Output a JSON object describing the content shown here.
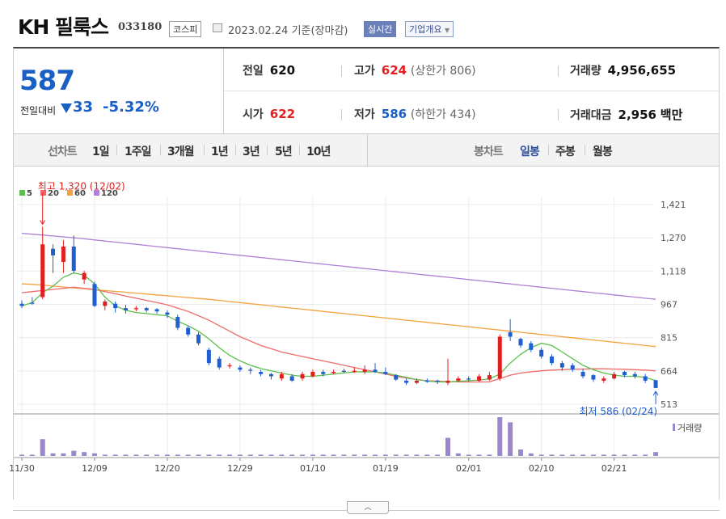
{
  "header": {
    "name": "KH 필룩스",
    "code": "033180",
    "market": "코스피",
    "date": "2023.02.24 기준(장마감)",
    "realtime": "실시간",
    "corp_info": "기업개요"
  },
  "quote": {
    "price": "587",
    "change_label": "전일대비",
    "change": "33",
    "change_pct": "-5.32%",
    "prev_label": "전일",
    "prev": "620",
    "high_label": "고가",
    "high": "624",
    "upper_limit": "(상한가 806)",
    "volume_label": "거래량",
    "volume": "4,956,655",
    "open_label": "시가",
    "open": "622",
    "low_label": "저가",
    "low": "586",
    "lower_limit": "(하한가 434)",
    "amount_label": "거래대금",
    "amount": "2,956",
    "amount_unit": "백만"
  },
  "tabs": {
    "line_label": "선차트",
    "line": [
      "1일",
      "1주일",
      "3개월",
      "1년",
      "3년",
      "5년",
      "10년"
    ],
    "candle_label": "봉차트",
    "candle": [
      "일봉",
      "주봉",
      "월봉"
    ],
    "active_candle": "일봉"
  },
  "colors": {
    "up": "#e02020",
    "down": "#1f5fd1",
    "ma5": "#5cbf4d",
    "ma20": "#f06a6a",
    "ma60": "#f5a23c",
    "ma120": "#b07fd6",
    "volume": "#9b88c9"
  },
  "chart_data": {
    "type": "candlestick",
    "legend": [
      {
        "name": "5",
        "color": "#5cbf4d"
      },
      {
        "name": "20",
        "color": "#f06a6a"
      },
      {
        "name": "60",
        "color": "#f5a23c"
      },
      {
        "name": "120",
        "color": "#b07fd6"
      }
    ],
    "volume_label": "거래량",
    "y_ticks": [
      "1,421",
      "1,270",
      "1,118",
      "967",
      "815",
      "664",
      "513"
    ],
    "ylim": [
      513,
      1421
    ],
    "x_ticks": [
      {
        "label": "11/30",
        "index": 0
      },
      {
        "label": "12/09",
        "index": 7
      },
      {
        "label": "12/20",
        "index": 14
      },
      {
        "label": "12/29",
        "index": 21
      },
      {
        "label": "01/10",
        "index": 28
      },
      {
        "label": "01/19",
        "index": 35
      },
      {
        "label": "02/01",
        "index": 43
      },
      {
        "label": "02/10",
        "index": 50
      },
      {
        "label": "02/21",
        "index": 57
      }
    ],
    "annotations": [
      {
        "text": "최고 1,320 (12/02)",
        "index": 2,
        "value": 1320,
        "side": "above"
      },
      {
        "text": "최저 586 (02/24)",
        "index": 61,
        "value": 586,
        "side": "below"
      }
    ],
    "candles": [
      [
        970,
        960,
        985,
        950
      ],
      [
        975,
        970,
        1000,
        965
      ],
      [
        1000,
        1240,
        1320,
        990
      ],
      [
        1220,
        1190,
        1240,
        1110
      ],
      [
        1160,
        1230,
        1260,
        1110
      ],
      [
        1230,
        1120,
        1280,
        1110
      ],
      [
        1080,
        1110,
        1120,
        1060
      ],
      [
        1060,
        960,
        1070,
        955
      ],
      [
        960,
        980,
        990,
        940
      ],
      [
        970,
        950,
        980,
        930
      ],
      [
        950,
        940,
        965,
        925
      ],
      [
        945,
        950,
        960,
        935
      ],
      [
        950,
        940,
        955,
        930
      ],
      [
        945,
        935,
        950,
        925
      ],
      [
        930,
        920,
        940,
        905
      ],
      [
        910,
        860,
        920,
        850
      ],
      [
        860,
        830,
        870,
        820
      ],
      [
        830,
        790,
        840,
        780
      ],
      [
        760,
        700,
        770,
        690
      ],
      [
        720,
        680,
        730,
        670
      ],
      [
        685,
        690,
        700,
        675
      ],
      [
        680,
        670,
        690,
        660
      ],
      [
        670,
        665,
        680,
        650
      ],
      [
        660,
        650,
        670,
        640
      ],
      [
        650,
        640,
        655,
        625
      ],
      [
        630,
        650,
        660,
        620
      ],
      [
        640,
        620,
        650,
        615
      ],
      [
        630,
        650,
        660,
        620
      ],
      [
        640,
        660,
        670,
        635
      ],
      [
        660,
        650,
        670,
        640
      ],
      [
        655,
        660,
        670,
        650
      ],
      [
        665,
        660,
        675,
        655
      ],
      [
        660,
        665,
        680,
        655
      ],
      [
        660,
        670,
        690,
        650
      ],
      [
        670,
        660,
        700,
        655
      ],
      [
        660,
        650,
        680,
        645
      ],
      [
        645,
        625,
        650,
        620
      ],
      [
        620,
        610,
        630,
        600
      ],
      [
        610,
        620,
        630,
        605
      ],
      [
        620,
        615,
        630,
        610
      ],
      [
        620,
        615,
        625,
        605
      ],
      [
        610,
        620,
        720,
        600
      ],
      [
        620,
        630,
        640,
        615
      ],
      [
        630,
        625,
        640,
        615
      ],
      [
        620,
        640,
        650,
        615
      ],
      [
        625,
        645,
        660,
        620
      ],
      [
        630,
        820,
        830,
        620
      ],
      [
        840,
        820,
        900,
        800
      ],
      [
        810,
        780,
        815,
        770
      ],
      [
        790,
        760,
        800,
        750
      ],
      [
        760,
        730,
        770,
        720
      ],
      [
        730,
        700,
        740,
        690
      ],
      [
        700,
        680,
        710,
        665
      ],
      [
        690,
        670,
        700,
        660
      ],
      [
        660,
        640,
        675,
        630
      ],
      [
        645,
        625,
        650,
        615
      ],
      [
        620,
        630,
        640,
        610
      ],
      [
        630,
        650,
        660,
        625
      ],
      [
        660,
        645,
        665,
        635
      ],
      [
        650,
        640,
        660,
        630
      ],
      [
        640,
        620,
        650,
        610
      ],
      [
        622,
        587,
        624,
        586
      ]
    ],
    "ma5": [
      960,
      975,
      1020,
      1050,
      1090,
      1110,
      1100,
      1060,
      1000,
      960,
      940,
      930,
      925,
      920,
      915,
      890,
      870,
      845,
      810,
      770,
      735,
      710,
      690,
      675,
      665,
      655,
      645,
      640,
      640,
      645,
      650,
      655,
      660,
      660,
      660,
      655,
      645,
      635,
      625,
      618,
      615,
      615,
      617,
      620,
      623,
      628,
      650,
      700,
      740,
      770,
      790,
      780,
      750,
      720,
      690,
      670,
      655,
      645,
      640,
      640,
      635,
      620
    ],
    "ma20": [
      1020,
      1025,
      1030,
      1035,
      1040,
      1045,
      1040,
      1035,
      1025,
      1015,
      1005,
      995,
      985,
      975,
      965,
      950,
      935,
      915,
      895,
      870,
      845,
      820,
      800,
      780,
      765,
      750,
      740,
      730,
      720,
      710,
      700,
      690,
      680,
      670,
      660,
      650,
      640,
      632,
      625,
      620,
      618,
      616,
      615,
      614,
      614,
      615,
      630,
      645,
      655,
      660,
      665,
      668,
      670,
      672,
      673,
      674,
      674,
      673,
      672,
      670,
      668,
      665
    ],
    "ma60": [
      1060,
      1058,
      1055,
      1050,
      1046,
      1042,
      1038,
      1034,
      1030,
      1026,
      1022,
      1018,
      1014,
      1010,
      1006,
      1002,
      998,
      994,
      990,
      985,
      980,
      975,
      970,
      965,
      960,
      955,
      950,
      945,
      940,
      935,
      930,
      925,
      920,
      915,
      910,
      905,
      900,
      895,
      890,
      885,
      880,
      875,
      870,
      865,
      860,
      855,
      850,
      845,
      840,
      835,
      830,
      825,
      820,
      815,
      810,
      805,
      800,
      795,
      790,
      785,
      780,
      775
    ],
    "ma120": [
      1290,
      1286,
      1282,
      1278,
      1274,
      1270,
      1265,
      1260,
      1255,
      1250,
      1245,
      1240,
      1235,
      1230,
      1225,
      1220,
      1215,
      1210,
      1205,
      1200,
      1195,
      1190,
      1185,
      1180,
      1175,
      1170,
      1165,
      1160,
      1155,
      1150,
      1145,
      1140,
      1135,
      1130,
      1125,
      1120,
      1115,
      1110,
      1105,
      1100,
      1095,
      1090,
      1085,
      1080,
      1075,
      1070,
      1065,
      1060,
      1055,
      1050,
      1045,
      1040,
      1035,
      1030,
      1025,
      1020,
      1015,
      1010,
      1005,
      1000,
      995,
      990
    ],
    "volume": [
      1,
      1,
      13,
      2,
      2,
      4,
      3,
      2,
      1,
      1,
      1,
      1,
      1,
      1,
      1,
      1,
      1,
      1,
      1,
      1,
      1,
      1,
      1,
      1,
      1,
      1,
      1,
      1,
      1,
      1,
      1,
      1,
      1,
      1,
      1,
      1,
      1,
      1,
      1,
      1,
      1,
      14,
      2,
      1,
      1,
      1,
      30,
      26,
      5,
      2,
      1,
      1,
      1,
      1,
      1,
      1,
      1,
      1,
      1,
      1,
      1,
      3
    ]
  }
}
